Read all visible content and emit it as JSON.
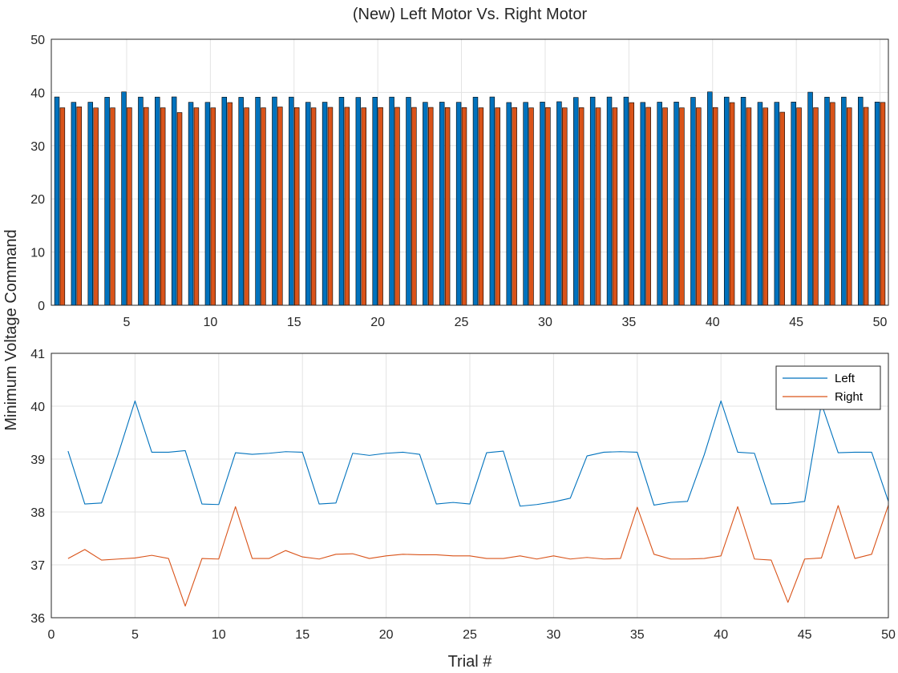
{
  "chart_data": [
    {
      "type": "bar",
      "title": "(New) Left Motor Vs. Right Motor",
      "xlabel": "",
      "ylabel": "Minimum Voltage Command",
      "ylim": [
        0,
        50
      ],
      "xlim": [
        0.5,
        50.5
      ],
      "yticks": [
        "0",
        "10",
        "20",
        "30",
        "40",
        "50"
      ],
      "xticks": [
        "5",
        "10",
        "15",
        "20",
        "25",
        "30",
        "35",
        "40",
        "45",
        "50"
      ],
      "grid": true,
      "colors": [
        "#0072BD",
        "#D95319"
      ],
      "x": [
        1,
        2,
        3,
        4,
        5,
        6,
        7,
        8,
        9,
        10,
        11,
        12,
        13,
        14,
        15,
        16,
        17,
        18,
        19,
        20,
        21,
        22,
        23,
        24,
        25,
        26,
        27,
        28,
        29,
        30,
        31,
        32,
        33,
        34,
        35,
        36,
        37,
        38,
        39,
        40,
        41,
        42,
        43,
        44,
        45,
        46,
        47,
        48,
        49,
        50
      ],
      "series": [
        {
          "values": [
            39.15,
            38.15,
            38.17,
            39.1,
            40.1,
            39.13,
            39.13,
            39.16,
            38.15,
            38.14,
            39.12,
            39.09,
            39.11,
            39.14,
            39.13,
            38.15,
            38.17,
            39.11,
            39.07,
            39.11,
            39.13,
            39.09,
            38.15,
            38.18,
            38.15,
            39.12,
            39.15,
            38.11,
            38.14,
            38.19,
            38.26,
            39.06,
            39.13,
            39.14,
            39.13,
            38.13,
            38.18,
            38.2,
            39.08,
            40.1,
            39.13,
            39.11,
            38.15,
            38.16,
            38.2,
            40.05,
            39.12,
            39.13,
            39.13,
            38.2
          ]
        },
        {
          "values": [
            37.12,
            37.29,
            37.09,
            37.11,
            37.13,
            37.18,
            37.12,
            36.22,
            37.12,
            37.11,
            38.1,
            37.12,
            37.12,
            37.27,
            37.15,
            37.11,
            37.2,
            37.21,
            37.12,
            37.17,
            37.2,
            37.19,
            37.19,
            37.17,
            37.17,
            37.12,
            37.12,
            37.17,
            37.11,
            37.17,
            37.11,
            37.14,
            37.11,
            37.12,
            38.09,
            37.2,
            37.11,
            37.11,
            37.12,
            37.17,
            38.1,
            37.11,
            37.09,
            36.29,
            37.11,
            37.13,
            38.12,
            37.12,
            37.2,
            38.13
          ]
        }
      ]
    },
    {
      "type": "line",
      "title": "",
      "xlabel": "Trial #",
      "ylabel": "",
      "xlim": [
        0,
        50
      ],
      "ylim": [
        36,
        41
      ],
      "yticks": [
        "36",
        "37",
        "38",
        "39",
        "40",
        "41"
      ],
      "xticks": [
        "0",
        "5",
        "10",
        "15",
        "20",
        "25",
        "30",
        "35",
        "40",
        "45",
        "50"
      ],
      "grid": true,
      "legend_position": "top-right",
      "colors": [
        "#0072BD",
        "#D95319"
      ],
      "x": [
        1,
        2,
        3,
        4,
        5,
        6,
        7,
        8,
        9,
        10,
        11,
        12,
        13,
        14,
        15,
        16,
        17,
        18,
        19,
        20,
        21,
        22,
        23,
        24,
        25,
        26,
        27,
        28,
        29,
        30,
        31,
        32,
        33,
        34,
        35,
        36,
        37,
        38,
        39,
        40,
        41,
        42,
        43,
        44,
        45,
        46,
        47,
        48,
        49,
        50
      ],
      "series": [
        {
          "name": "Left",
          "values": [
            39.15,
            38.15,
            38.17,
            39.1,
            40.1,
            39.13,
            39.13,
            39.16,
            38.15,
            38.14,
            39.12,
            39.09,
            39.11,
            39.14,
            39.13,
            38.15,
            38.17,
            39.11,
            39.07,
            39.11,
            39.13,
            39.09,
            38.15,
            38.18,
            38.15,
            39.12,
            39.15,
            38.11,
            38.14,
            38.19,
            38.26,
            39.06,
            39.13,
            39.14,
            39.13,
            38.13,
            38.18,
            38.2,
            39.08,
            40.1,
            39.13,
            39.11,
            38.15,
            38.16,
            38.2,
            40.05,
            39.12,
            39.13,
            39.13,
            38.2
          ]
        },
        {
          "name": "Right",
          "values": [
            37.12,
            37.29,
            37.09,
            37.11,
            37.13,
            37.18,
            37.12,
            36.22,
            37.12,
            37.11,
            38.1,
            37.12,
            37.12,
            37.27,
            37.15,
            37.11,
            37.2,
            37.21,
            37.12,
            37.17,
            37.2,
            37.19,
            37.19,
            37.17,
            37.17,
            37.12,
            37.12,
            37.17,
            37.11,
            37.17,
            37.11,
            37.14,
            37.11,
            37.12,
            38.09,
            37.2,
            37.11,
            37.11,
            37.12,
            37.17,
            38.1,
            37.11,
            37.09,
            36.29,
            37.11,
            37.13,
            38.12,
            37.12,
            37.2,
            38.13
          ]
        }
      ]
    }
  ]
}
